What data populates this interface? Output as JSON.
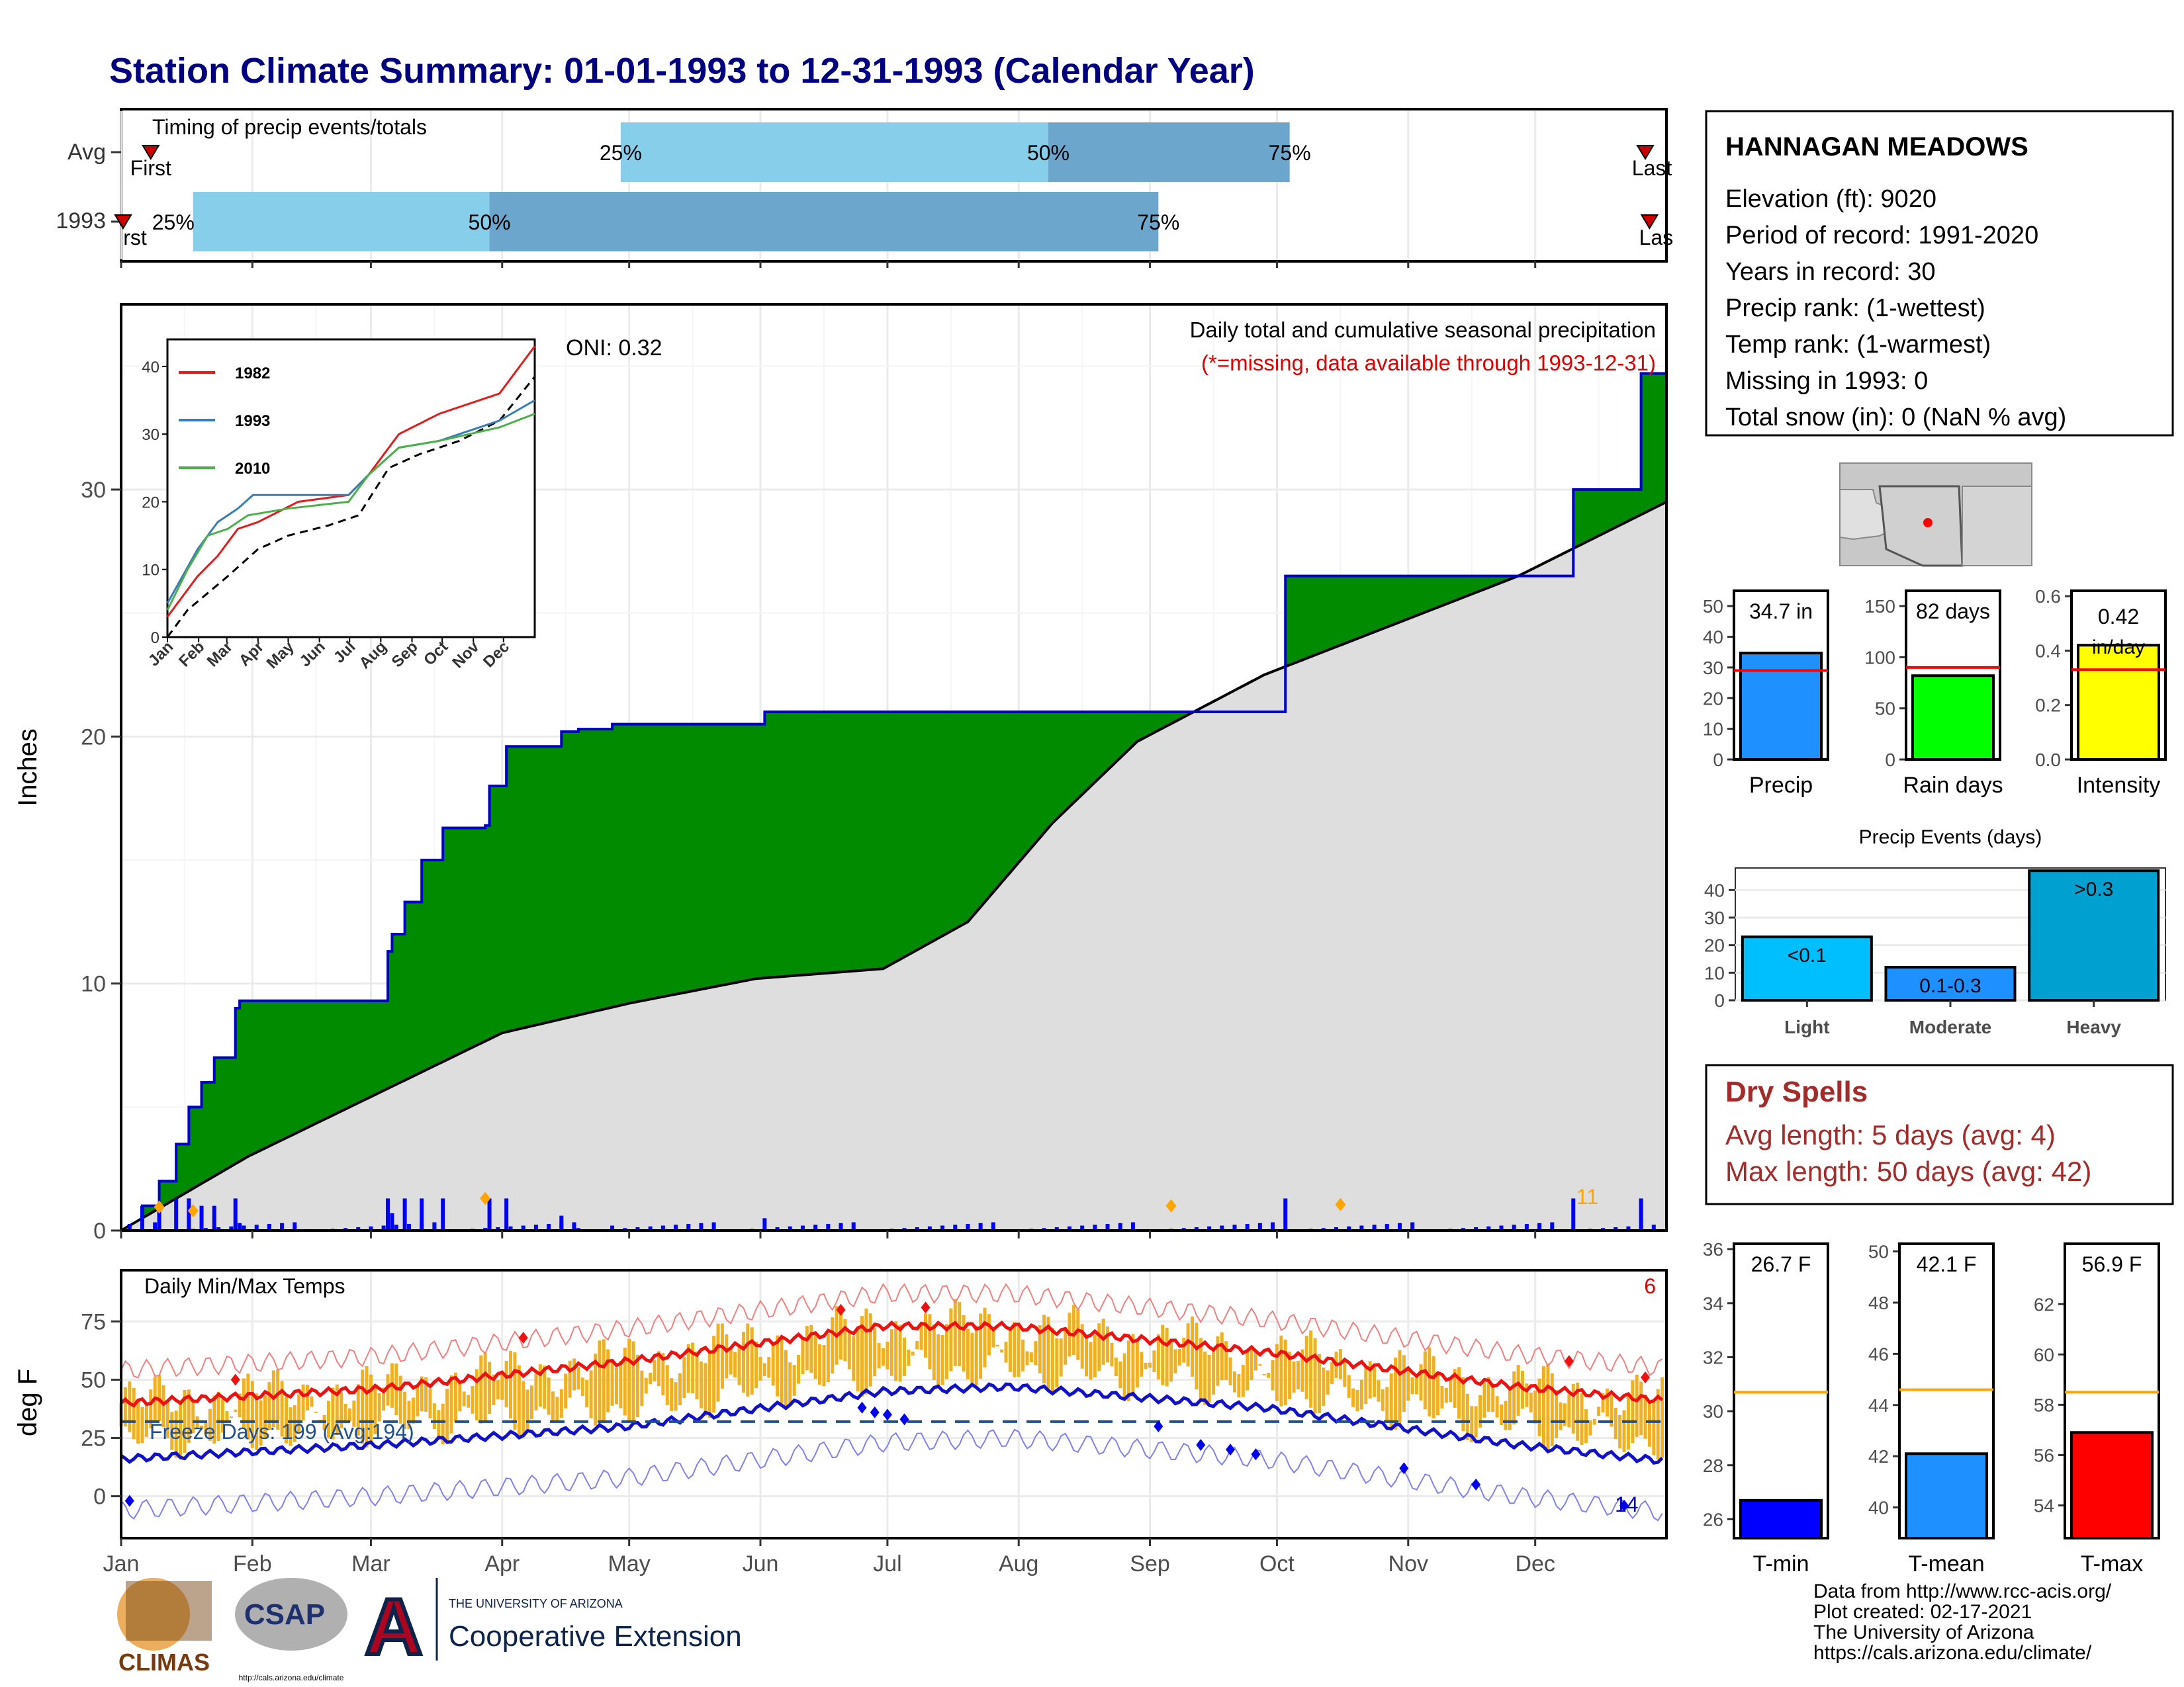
{
  "title": "Station Climate Summary: 01-01-1993 to 12-31-1993 (Calendar Year)",
  "months": [
    "Jan",
    "Feb",
    "Mar",
    "Apr",
    "May",
    "Jun",
    "Jul",
    "Aug",
    "Sep",
    "Oct",
    "Nov",
    "Dec"
  ],
  "timing": {
    "title": "Timing of precip events/totals",
    "rows": [
      {
        "label": "Avg",
        "first_day": 7,
        "p25": 118,
        "p50": 219,
        "p75": 276,
        "last_day": 360,
        "first_label": "First",
        "last_label": "Last",
        "p25_label": "25%",
        "p50_label": "50%",
        "p75_label": "75%"
      },
      {
        "label": "1993",
        "first_day": 0,
        "p25": 17,
        "p50": 87,
        "p75": 245,
        "last_day": 361,
        "first_label": "First",
        "last_label": "Last",
        "p25_label": "25%",
        "p50_label": "50%",
        "p75_label": "75%"
      }
    ],
    "colors": {
      "early": "#87CEEB",
      "late": "#6CA6CD",
      "marker": "#CC0000"
    }
  },
  "station": {
    "name": "HANNAGAN MEADOWS",
    "lines": [
      "Elevation (ft): 9020",
      "Period of record: 1991-2020",
      "Years in record: 30",
      "Precip rank:  (1-wettest)",
      "Temp rank:  (1-warmest)",
      "Missing in 1993: 0",
      "Total snow (in): 0 (NaN % avg)"
    ]
  },
  "precip": {
    "ylabel": "Inches",
    "oni": "ONI: 0.32",
    "caption": "Daily total and cumulative seasonal precipitation",
    "missing_note": "(*=missing, data available through 1993-12-31)",
    "extreme_count": "11",
    "yticks": [
      0,
      10,
      20,
      30
    ],
    "ylim": [
      0,
      37.5
    ],
    "colors": {
      "surplus": "#008B00",
      "normal": "#DEDEDE",
      "daily": "#0000FF",
      "cum_line": "#0000CC",
      "extreme": "#FFA500"
    }
  },
  "chart_data": [
    {
      "type": "area",
      "title": "Daily total and cumulative seasonal precipitation",
      "ylabel": "Inches",
      "ylim": [
        0,
        37.5
      ],
      "series": [
        {
          "name": "1993",
          "x_day": [
            0,
            5,
            9,
            13,
            16,
            19,
            22,
            27,
            28,
            33,
            63,
            64,
            67,
            71,
            76,
            86,
            87,
            91,
            104,
            108,
            116,
            152,
            275,
            343,
            359,
            365
          ],
          "cum_in": [
            0,
            1,
            2,
            3.5,
            5,
            6,
            7,
            9,
            9.3,
            9.3,
            11.3,
            12,
            13.3,
            15,
            16.3,
            16.4,
            18,
            19.6,
            20.2,
            20.3,
            20.5,
            21,
            26.5,
            30,
            34.7,
            34.7
          ]
        },
        {
          "name": "normal",
          "x_day": [
            0,
            30,
            60,
            90,
            120,
            150,
            180,
            200,
            220,
            240,
            270,
            300,
            330,
            365
          ],
          "cum_in": [
            0,
            3,
            5.5,
            8,
            9.2,
            10.2,
            10.6,
            12.5,
            16.5,
            19.8,
            22.5,
            24.5,
            26.5,
            29.5
          ]
        }
      ],
      "daily_peaks_in": [
        {
          "day": 9,
          "in": 0.95
        },
        {
          "day": 17,
          "in": 0.8
        },
        {
          "day": 86,
          "in": 1.3
        },
        {
          "day": 248,
          "in": 1.0
        },
        {
          "day": 288,
          "in": 1.05
        }
      ]
    },
    {
      "type": "line",
      "title": "Daily Min/Max Temps",
      "ylabel": "deg F",
      "yticks": [
        0,
        25,
        50,
        75
      ],
      "ylim": [
        -18,
        97
      ],
      "normal_max_F": [
        {
          "day": 0,
          "F": 40
        },
        {
          "day": 60,
          "F": 46
        },
        {
          "day": 120,
          "F": 58
        },
        {
          "day": 180,
          "F": 73
        },
        {
          "day": 210,
          "F": 73
        },
        {
          "day": 270,
          "F": 62
        },
        {
          "day": 330,
          "F": 47
        },
        {
          "day": 365,
          "F": 41
        }
      ],
      "normal_min_F": [
        {
          "day": 0,
          "F": 16
        },
        {
          "day": 60,
          "F": 22
        },
        {
          "day": 120,
          "F": 30
        },
        {
          "day": 180,
          "F": 45
        },
        {
          "day": 210,
          "F": 47
        },
        {
          "day": 270,
          "F": 38
        },
        {
          "day": 330,
          "F": 22
        },
        {
          "day": 365,
          "F": 15
        }
      ],
      "freeze_line_F": 32
    },
    {
      "type": "bar",
      "title": "Precip",
      "categories": [
        "Precip"
      ],
      "values": [
        34.7
      ],
      "normal": 29,
      "ylim": [
        0,
        55
      ],
      "label": "34.7 in"
    },
    {
      "type": "bar",
      "title": "Rain days",
      "categories": [
        "Rain days"
      ],
      "values": [
        82
      ],
      "normal": 90,
      "ylim": [
        0,
        165
      ],
      "label": "82 days"
    },
    {
      "type": "bar",
      "title": "Intensity",
      "categories": [
        "Intensity"
      ],
      "values": [
        0.42
      ],
      "normal": 0.33,
      "ylim": [
        0,
        0.62
      ],
      "label": "0.42 in/day"
    },
    {
      "type": "bar",
      "title": "Precip Events (days)",
      "categories": [
        "Light",
        "Moderate",
        "Heavy"
      ],
      "values": [
        23,
        12,
        47
      ],
      "labels": [
        "<0.1",
        "0.1-0.3",
        ">0.3"
      ],
      "ylim": [
        0,
        48
      ]
    },
    {
      "type": "bar",
      "title": "T-min",
      "categories": [
        "T-min"
      ],
      "values": [
        26.7
      ],
      "normal": 30.7,
      "ylim": [
        25.3,
        36.2
      ],
      "label": "26.7 F"
    },
    {
      "type": "bar",
      "title": "T-mean",
      "categories": [
        "T-mean"
      ],
      "values": [
        42.1
      ],
      "normal": 44.6,
      "ylim": [
        38.8,
        50.3
      ],
      "label": "42.1 F"
    },
    {
      "type": "bar",
      "title": "T-max",
      "categories": [
        "T-max"
      ],
      "values": [
        56.9
      ],
      "normal": 58.5,
      "ylim": [
        52.7,
        64.4
      ],
      "label": "56.9 F"
    }
  ],
  "inset": {
    "yticks": [
      0,
      10,
      20,
      30,
      40
    ],
    "months": [
      "Jan",
      "Feb",
      "Mar",
      "Apr",
      "May",
      "Jun",
      "Jul",
      "Aug",
      "Sep",
      "Oct",
      "Nov",
      "Dec"
    ],
    "legend": [
      {
        "name": "1982",
        "color": "#E41A1C"
      },
      {
        "name": "1993",
        "color": "#377EB8"
      },
      {
        "name": "2010",
        "color": "#4DAF4A"
      }
    ]
  },
  "temps": {
    "ylabel": "deg F",
    "title": "Daily Min/Max Temps",
    "freeze_label": "Freeze Days: 199 (Avg:194)",
    "max_extreme_count": "6",
    "min_extreme_count": "14",
    "yticks": [
      0,
      25,
      50,
      75
    ],
    "colors": {
      "bars": "#F0B020",
      "max_line": "#EE1111",
      "min_line": "#1111CC",
      "max_rec": "#F08080",
      "min_rec": "#8080F0"
    }
  },
  "panels": {
    "precip": {
      "title": "Precip",
      "label": "34.7 in",
      "yticks": [
        0,
        10,
        20,
        30,
        40,
        50
      ],
      "color": "#1E90FF"
    },
    "raindays": {
      "title": "Rain days",
      "label": "82 days",
      "yticks": [
        0,
        50,
        100,
        150
      ],
      "color": "#00FF00"
    },
    "intensity": {
      "title": "Intensity",
      "label_line1": "0.42",
      "label_line2": "in/day",
      "yticks": [
        "0.0",
        "0.2",
        "0.4",
        "0.6"
      ],
      "color": "#FFFF00"
    },
    "events": {
      "title": "Precip Events (days)",
      "yticks": [
        0,
        10,
        20,
        30,
        40
      ],
      "color": "#00A0D0"
    },
    "tmin": {
      "title": "T-min",
      "label": "26.7 F",
      "yticks": [
        26,
        28,
        30,
        32,
        34,
        36
      ],
      "color": "#0000FF"
    },
    "tmean": {
      "title": "T-mean",
      "label": "42.1 F",
      "yticks": [
        40,
        42,
        44,
        46,
        48,
        50
      ],
      "color": "#1E90FF"
    },
    "tmax": {
      "title": "T-max",
      "label": "56.9 F",
      "yticks": [
        54,
        56,
        58,
        60,
        62
      ],
      "color": "#FF0000"
    }
  },
  "dry_spells": {
    "title": "Dry Spells",
    "avg": "Avg length: 5 days (avg: 4)",
    "max": "Max length: 50 days (avg: 42)",
    "color": "#A52A2A"
  },
  "credits": [
    "Data from http://www.rcc-acis.org/",
    "Plot created: 02-17-2021",
    "The University of Arizona",
    "https://cals.arizona.edu/climate/"
  ],
  "logos": {
    "climas": "CLIMAS",
    "csap": "CSAP",
    "csap_url": "http://cals.arizona.edu/climate",
    "ua_line1": "THE UNIVERSITY OF ARIZONA",
    "ua_line2": "Cooperative Extension",
    "ua_letter": "A"
  }
}
